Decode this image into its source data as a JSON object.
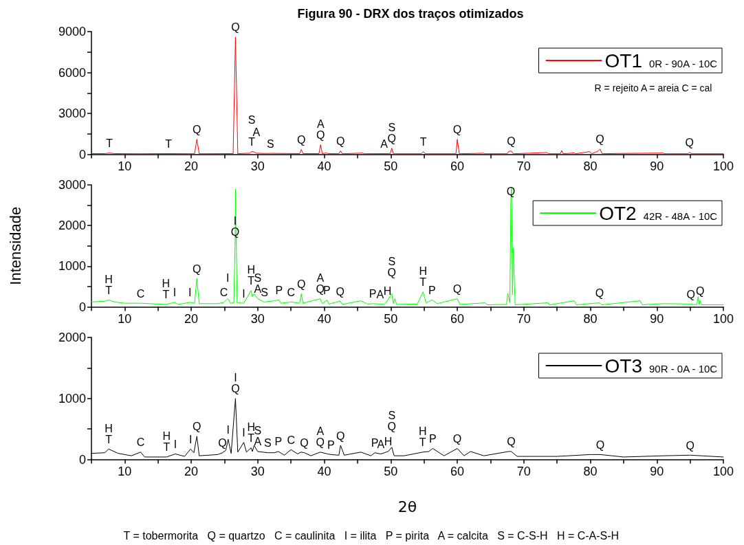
{
  "chart_data": [
    {
      "type": "line",
      "title": "Figura 90 - DRX dos traços otimizados",
      "legend": "top right",
      "x": [
        5,
        7,
        7.7,
        8.5,
        12,
        16.6,
        20.5,
        20.85,
        21.2,
        26.3,
        26.65,
        27.0,
        28.8,
        29.1,
        29.4,
        29.8,
        31,
        31.9,
        36.3,
        36.55,
        36.8,
        39.2,
        39.45,
        39.7,
        40.3,
        40.6,
        42.2,
        42.45,
        42.7,
        45.8,
        46,
        49,
        49.9,
        50.15,
        50.4,
        54.6,
        54.9,
        55.2,
        59.8,
        60.0,
        60.3,
        64,
        64.2,
        67.5,
        67.7,
        68.1,
        68.4,
        73.5,
        73.7,
        75.5,
        75.7,
        75.9,
        77.6,
        77.8,
        79.9,
        80.2,
        81.1,
        81.45,
        81.8,
        84,
        90.9,
        91.2,
        94.7,
        94.9,
        95.2,
        100
      ],
      "series": [
        {
          "name": "OT1 0R - 90A - 10C",
          "color": "#ff0000",
          "values": [
            50,
            50,
            90,
            50,
            40,
            50,
            40,
            1100,
            40,
            50,
            8600,
            50,
            80,
            200,
            180,
            80,
            60,
            70,
            50,
            350,
            50,
            50,
            700,
            50,
            100,
            50,
            40,
            250,
            40,
            90,
            40,
            50,
            40,
            450,
            40,
            40,
            200,
            40,
            40,
            1100,
            40,
            80,
            40,
            40,
            200,
            250,
            40,
            130,
            40,
            40,
            280,
            40,
            100,
            40,
            200,
            40,
            220,
            380,
            40,
            60,
            90,
            40,
            40,
            150,
            40,
            40
          ]
        }
      ],
      "xlim": [
        5,
        100
      ],
      "xticks": [
        {
          "value": 5,
          "label": null
        },
        10,
        {
          "value": 15,
          "label": null
        },
        20,
        {
          "value": 25,
          "label": null
        },
        30,
        {
          "value": 35,
          "label": null
        },
        40,
        {
          "value": 45,
          "label": null
        },
        50,
        {
          "value": 55,
          "label": null
        },
        60,
        {
          "value": 65,
          "label": null
        },
        70,
        {
          "value": 75,
          "label": null
        },
        80,
        {
          "value": 85,
          "label": null
        },
        90,
        {
          "value": 95,
          "label": null
        },
        100
      ],
      "ylim": [
        0,
        9000
      ],
      "yticks": [
        0,
        {
          "value": 1500,
          "label": null
        },
        3000,
        {
          "value": 4500,
          "label": null
        },
        6000,
        {
          "value": 7500,
          "label": null
        },
        9000
      ],
      "annotations": [
        {
          "text": "T",
          "x": 7.7,
          "y": 90
        },
        {
          "text": "T",
          "x": 16.6,
          "y": 50
        },
        {
          "text": "Q",
          "x": 20.85,
          "y": 1100
        },
        {
          "text": "Q",
          "x": 26.65,
          "y": 8600
        },
        {
          "text": "T",
          "x": 29.1,
          "y": 200
        },
        {
          "text": "A",
          "x": 29.8,
          "y": 80
        },
        {
          "text": "S",
          "x": 29.1,
          "y": 200
        },
        {
          "text": "S",
          "x": 31.9,
          "y": 70
        },
        {
          "text": "Q",
          "x": 36.55,
          "y": 350
        },
        {
          "text": "Q",
          "x": 39.45,
          "y": 700
        },
        {
          "text": "A",
          "x": 39.45,
          "y": 700
        },
        {
          "text": "Q",
          "x": 42.45,
          "y": 250
        },
        {
          "text": "A",
          "x": 49,
          "y": 50
        },
        {
          "text": "Q",
          "x": 50.15,
          "y": 450
        },
        {
          "text": "S",
          "x": 50.15,
          "y": 450
        },
        {
          "text": "T",
          "x": 54.9,
          "y": 200
        },
        {
          "text": "Q",
          "x": 60.0,
          "y": 1100
        },
        {
          "text": "Q",
          "x": 68.1,
          "y": 250
        },
        {
          "text": "Q",
          "x": 81.45,
          "y": 380
        },
        {
          "text": "Q",
          "x": 94.9,
          "y": 150
        },
        "R = rejeito A = areia C = cal"
      ]
    },
    {
      "type": "line",
      "ylabel": "Intensidade",
      "legend": "top right",
      "x": [
        5,
        7,
        7.6,
        8.5,
        10,
        12.4,
        16.2,
        17.5,
        18,
        19.8,
        20.5,
        20.85,
        21.2,
        24,
        24.9,
        25.5,
        25.9,
        26.4,
        26.6,
        26.65,
        26.9,
        27.9,
        29.0,
        29.2,
        29.45,
        30,
        31,
        32.5,
        33.2,
        33.5,
        35,
        36.3,
        36.55,
        36.8,
        39.4,
        39.7,
        40.4,
        40.7,
        42.4,
        42.7,
        45.5,
        46.5,
        47.3,
        48.4,
        49,
        49.5,
        50.15,
        50.4,
        50.6,
        50.9,
        54,
        54.85,
        55.3,
        56.2,
        57,
        60,
        60.4,
        64.2,
        64.5,
        67.4,
        67.6,
        67.9,
        68.05,
        68.15,
        68.3,
        68.4,
        68.7,
        73.6,
        73.9,
        77.6,
        77.9,
        81.4,
        81.7,
        87.5,
        87.8,
        91,
        95.1,
        96.0,
        96.2,
        96.35,
        96.5,
        96.7,
        100
      ],
      "series": [
        {
          "name": "OT2 42R - 48A - 10C",
          "color": "#00ff00",
          "values": [
            120,
            140,
            170,
            120,
            90,
            90,
            60,
            110,
            60,
            110,
            90,
            700,
            80,
            80,
            110,
            200,
            90,
            100,
            1600,
            2900,
            100,
            90,
            400,
            250,
            320,
            200,
            120,
            150,
            170,
            90,
            120,
            90,
            320,
            90,
            200,
            80,
            170,
            70,
            140,
            60,
            150,
            70,
            80,
            70,
            60,
            150,
            330,
            80,
            200,
            60,
            70,
            370,
            100,
            170,
            80,
            200,
            60,
            100,
            50,
            60,
            330,
            100,
            2600,
            2950,
            300,
            1450,
            50,
            100,
            50,
            150,
            50,
            100,
            50,
            150,
            50,
            80,
            70,
            50,
            250,
            60,
            160,
            50,
            50
          ]
        }
      ],
      "xlim": [
        5,
        100
      ],
      "xticks": [
        {
          "value": 5,
          "label": null
        },
        10,
        {
          "value": 15,
          "label": null
        },
        20,
        {
          "value": 25,
          "label": null
        },
        30,
        {
          "value": 35,
          "label": null
        },
        40,
        {
          "value": 45,
          "label": null
        },
        50,
        {
          "value": 55,
          "label": null
        },
        60,
        {
          "value": 65,
          "label": null
        },
        70,
        {
          "value": 75,
          "label": null
        },
        80,
        {
          "value": 85,
          "label": null
        },
        90,
        {
          "value": 95,
          "label": null
        },
        100
      ],
      "ylim": [
        0,
        3000
      ],
      "yticks": [
        0,
        {
          "value": 500,
          "label": null
        },
        1000,
        {
          "value": 1500,
          "label": null
        },
        2000,
        {
          "value": 2500,
          "label": null
        },
        3000
      ],
      "annotations": [
        {
          "text": "T",
          "x": 7.6,
          "y": 170
        },
        {
          "text": "H",
          "x": 7.6,
          "y": 170
        },
        {
          "text": "C",
          "x": 12.4,
          "y": 90
        },
        {
          "text": "T",
          "x": 16.2,
          "y": 60
        },
        {
          "text": "H",
          "x": 16.2,
          "y": 60
        },
        {
          "text": "I",
          "x": 17.5,
          "y": 110
        },
        {
          "text": "I",
          "x": 19.8,
          "y": 110
        },
        {
          "text": "Q",
          "x": 20.85,
          "y": 700
        },
        {
          "text": "C",
          "x": 24.9,
          "y": 110
        },
        {
          "text": "I",
          "x": 25.5,
          "y": 200
        },
        {
          "text": "Q",
          "x": 26.6,
          "y": 1600
        },
        {
          "text": "I",
          "x": 26.6,
          "y": 1600
        },
        {
          "text": "I",
          "x": 27.9,
          "y": 90
        },
        {
          "text": "T",
          "x": 29.0,
          "y": 400
        },
        {
          "text": "H",
          "x": 29.0,
          "y": 400
        },
        {
          "text": "A",
          "x": 30,
          "y": 200
        },
        {
          "text": "S",
          "x": 30,
          "y": 200
        },
        {
          "text": "S",
          "x": 31,
          "y": 120
        },
        {
          "text": "P",
          "x": 33.2,
          "y": 170
        },
        {
          "text": "C",
          "x": 35,
          "y": 120
        },
        {
          "text": "Q",
          "x": 36.55,
          "y": 320
        },
        {
          "text": "Q",
          "x": 39.4,
          "y": 200
        },
        {
          "text": "A",
          "x": 39.4,
          "y": 200
        },
        {
          "text": "P",
          "x": 40.4,
          "y": 170
        },
        {
          "text": "Q",
          "x": 42.4,
          "y": 140
        },
        {
          "text": "P",
          "x": 47.3,
          "y": 80
        },
        {
          "text": "A",
          "x": 48.4,
          "y": 70
        },
        {
          "text": "H",
          "x": 49.5,
          "y": 150
        },
        {
          "text": "Q",
          "x": 50.15,
          "y": 330
        },
        {
          "text": "S",
          "x": 50.15,
          "y": 330
        },
        {
          "text": "T",
          "x": 54.85,
          "y": 370
        },
        {
          "text": "H",
          "x": 54.85,
          "y": 370
        },
        {
          "text": "P",
          "x": 56.2,
          "y": 170
        },
        {
          "text": "Q",
          "x": 60,
          "y": 200
        },
        {
          "text": "Q",
          "x": 68.05,
          "y": 2600
        },
        {
          "text": "Q",
          "x": 81.4,
          "y": 100
        },
        {
          "text": "Q",
          "x": 95.1,
          "y": 70
        },
        {
          "text": "Q",
          "x": 96.5,
          "y": 160
        }
      ]
    },
    {
      "type": "line",
      "xlabel": "2θ",
      "legend": "top right",
      "x": [
        5,
        7,
        7.6,
        9,
        11,
        12.4,
        13,
        16.3,
        17.6,
        19,
        19.9,
        20.4,
        20.85,
        21.2,
        24,
        24.7,
        25.2,
        25.55,
        26,
        26.65,
        27,
        27.9,
        28.3,
        29,
        29.2,
        29.45,
        30,
        31.5,
        32.5,
        33.1,
        34,
        35,
        36,
        36.5,
        37,
        38,
        39.4,
        40.5,
        41,
        42.2,
        42.45,
        43,
        45.5,
        47,
        47.6,
        48.5,
        49.6,
        50.15,
        50.5,
        52,
        54.8,
        55.7,
        56.3,
        58,
        60,
        61,
        62,
        64,
        67.7,
        68.1,
        69,
        75,
        80,
        81.5,
        85,
        91,
        95,
        100
      ],
      "series": [
        {
          "name": "OT3 90R - 0A - 10C",
          "color": "#000000",
          "values": [
            100,
            110,
            170,
            100,
            60,
            120,
            40,
            40,
            90,
            50,
            170,
            110,
            380,
            60,
            80,
            110,
            150,
            330,
            100,
            1000,
            120,
            280,
            120,
            190,
            130,
            230,
            130,
            110,
            110,
            130,
            70,
            160,
            90,
            120,
            110,
            60,
            120,
            90,
            80,
            70,
            230,
            70,
            120,
            60,
            110,
            90,
            130,
            200,
            60,
            60,
            120,
            130,
            180,
            60,
            180,
            60,
            130,
            60,
            130,
            130,
            50,
            50,
            80,
            80,
            40,
            60,
            70,
            40
          ]
        }
      ],
      "xlim": [
        5,
        100
      ],
      "xticks": [
        {
          "value": 5,
          "label": null
        },
        10,
        {
          "value": 15,
          "label": null
        },
        20,
        {
          "value": 25,
          "label": null
        },
        30,
        {
          "value": 35,
          "label": null
        },
        40,
        {
          "value": 45,
          "label": null
        },
        50,
        {
          "value": 55,
          "label": null
        },
        60,
        {
          "value": 65,
          "label": null
        },
        70,
        {
          "value": 75,
          "label": null
        },
        80,
        {
          "value": 85,
          "label": null
        },
        90,
        {
          "value": 95,
          "label": null
        },
        100
      ],
      "ylim": [
        0,
        2000
      ],
      "yticks": [
        0,
        {
          "value": 500,
          "label": null
        },
        1000,
        {
          "value": 1500,
          "label": null
        },
        2000
      ],
      "annotations": [
        {
          "text": "T",
          "x": 7.6,
          "y": 170
        },
        {
          "text": "H",
          "x": 7.6,
          "y": 170
        },
        {
          "text": "C",
          "x": 12.4,
          "y": 120
        },
        {
          "text": "T",
          "x": 16.3,
          "y": 40
        },
        {
          "text": "H",
          "x": 16.3,
          "y": 40
        },
        {
          "text": "I",
          "x": 17.6,
          "y": 90
        },
        {
          "text": "I",
          "x": 19.9,
          "y": 170
        },
        {
          "text": "Q",
          "x": 20.85,
          "y": 380
        },
        {
          "text": "Q",
          "x": 24.7,
          "y": 110
        },
        {
          "text": "I",
          "x": 25.55,
          "y": 330
        },
        {
          "text": "Q",
          "x": 26.65,
          "y": 1000
        },
        {
          "text": "I",
          "x": 26.65,
          "y": 1000
        },
        {
          "text": "I",
          "x": 27.9,
          "y": 280
        },
        {
          "text": "T",
          "x": 29,
          "y": 190
        },
        {
          "text": "H",
          "x": 29,
          "y": 190
        },
        {
          "text": "A",
          "x": 30,
          "y": 130
        },
        {
          "text": "S",
          "x": 30,
          "y": 130
        },
        {
          "text": "S",
          "x": 31.5,
          "y": 110
        },
        {
          "text": "P",
          "x": 33.1,
          "y": 130
        },
        {
          "text": "C",
          "x": 35,
          "y": 160
        },
        {
          "text": "Q",
          "x": 37,
          "y": 110
        },
        {
          "text": "Q",
          "x": 39.4,
          "y": 120
        },
        {
          "text": "A",
          "x": 39.4,
          "y": 120
        },
        {
          "text": "P",
          "x": 41,
          "y": 80
        },
        {
          "text": "Q",
          "x": 42.45,
          "y": 230
        },
        {
          "text": "P",
          "x": 47.6,
          "y": 110
        },
        {
          "text": "A",
          "x": 48.5,
          "y": 90
        },
        {
          "text": "H",
          "x": 49.6,
          "y": 130
        },
        {
          "text": "Q",
          "x": 50.15,
          "y": 200
        },
        {
          "text": "S",
          "x": 50.15,
          "y": 200
        },
        {
          "text": "T",
          "x": 54.8,
          "y": 120
        },
        {
          "text": "H",
          "x": 54.8,
          "y": 120
        },
        {
          "text": "P",
          "x": 56.3,
          "y": 180
        },
        {
          "text": "Q",
          "x": 60,
          "y": 180
        },
        {
          "text": "Q",
          "x": 68.1,
          "y": 130
        },
        {
          "text": "Q",
          "x": 81.5,
          "y": 80
        },
        {
          "text": "Q",
          "x": 95,
          "y": 70
        },
        "T = tobermorita   Q = quartzo   C = caulinita   I = ilita   P = pirita   A = calcita   S = C-S-H   H = C-A-S-H"
      ]
    }
  ]
}
